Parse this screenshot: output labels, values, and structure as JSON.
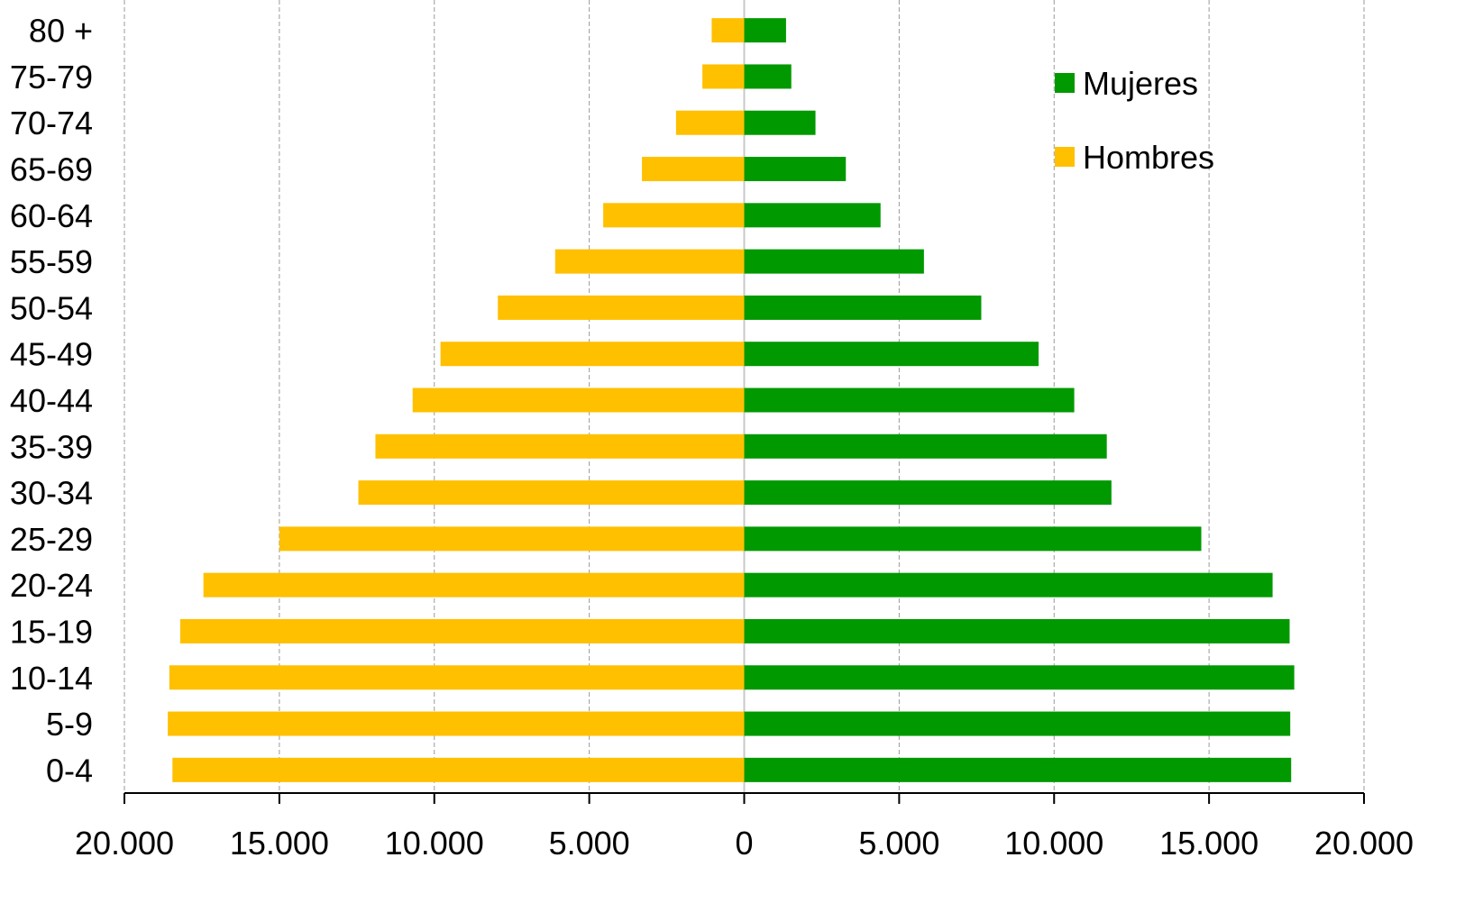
{
  "chart_data": {
    "type": "bar",
    "orientation": "horizontal",
    "subtype": "population-pyramid",
    "categories": [
      "0-4",
      "5-9",
      "10-14",
      "15-19",
      "20-24",
      "25-29",
      "30-34",
      "35-39",
      "40-44",
      "45-49",
      "50-54",
      "55-59",
      "60-64",
      "65-69",
      "70-74",
      "75-79",
      "80 +"
    ],
    "series": [
      {
        "name": "Hombres",
        "color": "#FFC000",
        "side": "left",
        "values": [
          18450,
          18600,
          18550,
          18200,
          17450,
          15000,
          12450,
          11900,
          10700,
          9800,
          7950,
          6100,
          4550,
          3300,
          2200,
          1350,
          1050
        ]
      },
      {
        "name": "Mujeres",
        "color": "#009900",
        "side": "right",
        "values": [
          17650,
          17620,
          17750,
          17600,
          17050,
          14750,
          11850,
          11700,
          10650,
          9500,
          7650,
          5800,
          4400,
          3280,
          2300,
          1520,
          1350
        ]
      }
    ],
    "xaxis": {
      "range": [
        -20000,
        20000
      ],
      "ticks": [
        -20000,
        -15000,
        -10000,
        -5000,
        0,
        5000,
        10000,
        15000,
        20000
      ],
      "tick_labels": [
        "20.000",
        "15.000",
        "10.000",
        "5.000",
        "0",
        "5.000",
        "10.000",
        "15.000",
        "20.000"
      ]
    },
    "grid": "vertical-dashed",
    "legend": {
      "placement": "top-right",
      "items": [
        "Mujeres",
        "Hombres"
      ]
    },
    "title": "",
    "xlabel": "",
    "ylabel": ""
  }
}
